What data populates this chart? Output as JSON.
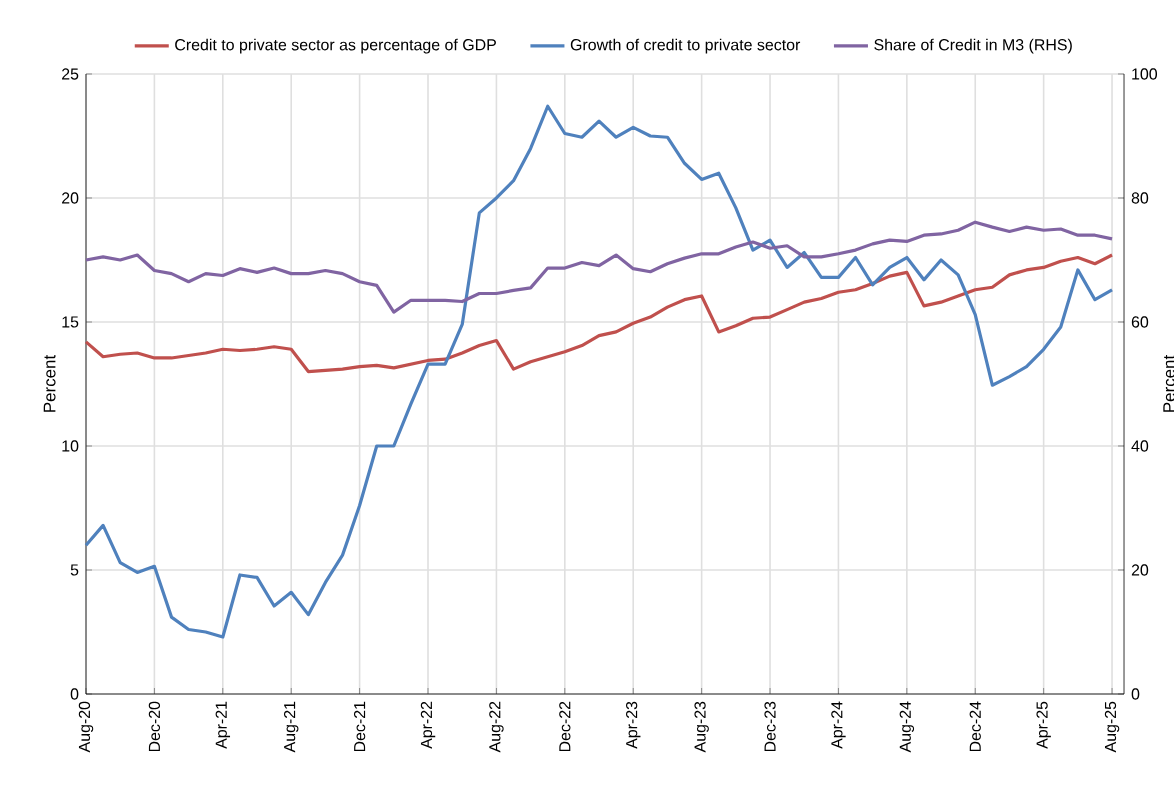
{
  "chart_data": {
    "type": "line",
    "ylabel": "Percent",
    "y2label": "Percent",
    "categories": [
      "Aug-20",
      null,
      null,
      null,
      "Dec-20",
      null,
      null,
      null,
      "Apr-21",
      null,
      null,
      null,
      "Aug-21",
      null,
      null,
      null,
      "Dec-21",
      null,
      null,
      null,
      "Apr-22",
      null,
      null,
      null,
      "Aug-22",
      null,
      null,
      null,
      "Dec-22",
      null,
      null,
      null,
      "Apr-23",
      null,
      null,
      null,
      "Aug-23",
      null,
      null,
      null,
      "Dec-23",
      null,
      null,
      null,
      "Apr-24",
      null,
      null,
      null,
      "Aug-24",
      null,
      null,
      null,
      "Dec-24",
      null,
      null,
      null,
      "Apr-25",
      null,
      null,
      null,
      "Aug-25"
    ],
    "series": [
      {
        "name": "Credit to private sector as percentage of GDP",
        "color": "#c0504d",
        "values": [
          14.2,
          13.6,
          13.7,
          13.75,
          13.55,
          13.55,
          13.65,
          13.75,
          13.9,
          13.85,
          13.9,
          14.0,
          13.9,
          13.0,
          13.05,
          13.1,
          13.2,
          13.25,
          13.15,
          13.3,
          13.45,
          13.5,
          13.75,
          14.05,
          14.25,
          13.1,
          13.4,
          13.6,
          13.8,
          14.05,
          14.45,
          14.6,
          14.95,
          15.2,
          15.6,
          15.9,
          16.05,
          14.6,
          14.85,
          15.15,
          15.2,
          15.5,
          15.8,
          15.95,
          16.2,
          16.3,
          16.55,
          16.85,
          17.0,
          15.65,
          15.8,
          16.05,
          16.3,
          16.4,
          16.9,
          17.1,
          17.2,
          17.45,
          17.6,
          17.35,
          17.7
        ]
      },
      {
        "name": "Growth of credit to private sector",
        "color": "#4f81bd",
        "values": [
          6.0,
          6.8,
          5.3,
          4.9,
          5.15,
          3.1,
          2.6,
          2.5,
          2.3,
          4.8,
          4.7,
          3.55,
          4.1,
          3.2,
          4.5,
          5.6,
          7.6,
          10.0,
          10.0,
          11.7,
          13.3,
          13.3,
          14.9,
          19.4,
          20.0,
          20.7,
          22.0,
          23.7,
          22.6,
          22.45,
          23.1,
          22.45,
          22.85,
          22.5,
          22.45,
          21.4,
          20.75,
          21.0,
          19.6,
          17.9,
          18.3,
          17.2,
          17.8,
          16.8,
          16.8,
          17.6,
          16.5,
          17.2,
          17.6,
          16.7,
          17.5,
          16.9,
          15.3,
          12.45,
          12.8,
          13.2,
          13.9,
          14.8,
          17.1,
          15.9,
          16.3
        ]
      },
      {
        "name": "Share of Credit in M3 (RHS)",
        "color": "#8064a2",
        "axis": "y2",
        "values": [
          70.0,
          70.5,
          70.0,
          70.8,
          68.3,
          67.8,
          66.5,
          67.8,
          67.5,
          68.6,
          68.0,
          68.7,
          67.8,
          67.8,
          68.3,
          67.8,
          66.5,
          65.9,
          61.6,
          63.5,
          63.5,
          63.5,
          63.3,
          64.6,
          64.6,
          65.1,
          65.5,
          68.7,
          68.7,
          69.6,
          69.1,
          70.8,
          68.6,
          68.1,
          69.4,
          70.3,
          71.0,
          71.0,
          72.1,
          72.9,
          71.9,
          72.3,
          70.5,
          70.5,
          71.0,
          71.6,
          72.6,
          73.2,
          73.0,
          74.0,
          74.2,
          74.8,
          76.1,
          75.3,
          74.6,
          75.3,
          74.8,
          75.0,
          74.0,
          74.0,
          73.4
        ]
      }
    ],
    "ylim": [
      0,
      25
    ],
    "yticks": [
      0,
      5,
      10,
      15,
      20,
      25
    ],
    "y2lim": [
      0,
      100
    ],
    "y2ticks": [
      0,
      20,
      40,
      60,
      80,
      100
    ],
    "grid": true,
    "legend": "top",
    "line_style": "solid"
  }
}
